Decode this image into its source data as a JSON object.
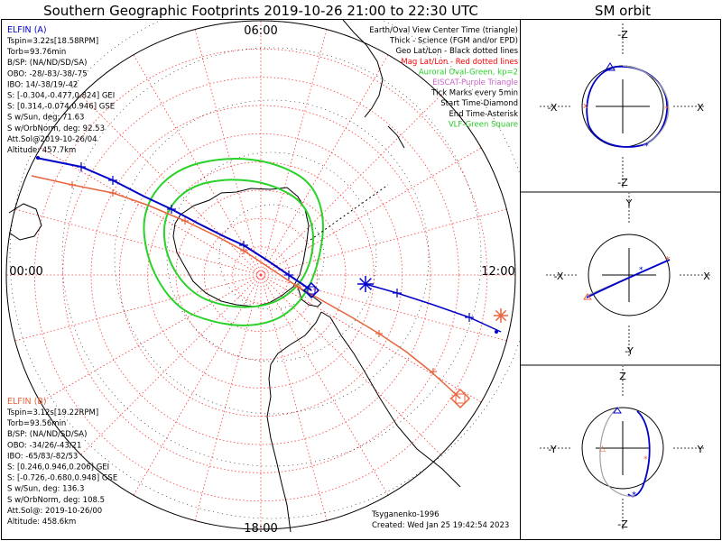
{
  "title": "Southern Geographic Footprints 2019-10-26 21:00 to 22:30 UTC",
  "sm_title": "SM orbit",
  "colors": {
    "elfin_a": "#0000c8",
    "elfin_b": "#e8643c",
    "oval": "#28d228",
    "grid": "#ff3c3c",
    "geo": "#000000",
    "eiscat": "#c864c8",
    "vlf": "#28c828",
    "sm_gray": "#a0a0a0"
  },
  "elfin_a": {
    "name": "ELFIN (A)",
    "lines": [
      "Tspin=3.22s[18.58RPM]",
      "Torb=93.76min",
      "B/SP: (NA/ND/SD/SA)",
      "OBO: -28/-83/-38/-75",
      "IBO: 14/-38/19/-42",
      "S: [-0.304,-0.477,0.824] GEI",
      "S: [0.314,-0.074,0.946] GSE",
      "S w/Sun, deg: 71.63",
      "S w/OrbNorm, deg: 92.53",
      "Att.Sol@2019-10-26/04",
      "Altitude: 457.7km"
    ]
  },
  "elfin_b": {
    "name": "ELFIN (B)",
    "lines": [
      "Tspin=3.12s[19.22RPM]",
      "Torb=93.56min",
      "B/SP: (NA/ND/SD/SA)",
      "OBO: -34/26/-43/21",
      "IBO: -65/83/-82/53",
      "S: [0.246,0.946,0.206] GEI",
      "S: [-0.726,-0.680,0.948] GSE",
      "S w/Sun, deg: 136.3",
      "S w/OrbNorm, deg: 108.5",
      "Att.Sol@: 2019-10-26/00",
      "Altitude: 458.6km"
    ]
  },
  "legend": [
    {
      "text": "Earth/Oval View Center Time (triangle)",
      "color": "#000000"
    },
    {
      "text": "Thick - Science (FGM and/or EPD)",
      "color": "#000000"
    },
    {
      "text": "Geo Lat/Lon - Black dotted lines",
      "color": "#000000"
    },
    {
      "text": "Mag Lat/Lon - Red dotted lines",
      "color": "#ff0000"
    },
    {
      "text": "Auroral Oval-Green, kp=2",
      "color": "#28d228"
    },
    {
      "text": "EISCAT-Purple Triangle",
      "color": "#c864c8"
    },
    {
      "text": "Tick Marks every 5min",
      "color": "#000000"
    },
    {
      "text": "Start Time-Diamond",
      "color": "#000000"
    },
    {
      "text": "End Time-Asterisk",
      "color": "#000000"
    },
    {
      "text": "VLF-Green Square",
      "color": "#28c828"
    }
  ],
  "mlt_labels": {
    "top": "06:00",
    "left": "00:00",
    "right": "12:00",
    "bottom": "18:00"
  },
  "footer": {
    "model": "Tsyganenko-1996",
    "created": "Created: Wed Jan 25 19:42:54 2023"
  },
  "sm_panels": [
    {
      "top": "-Z",
      "bottom": "-Z",
      "left": "-X",
      "right": "X"
    },
    {
      "top": "Y",
      "bottom": "-Y",
      "left": "-X",
      "right": "X"
    },
    {
      "top": "Z",
      "bottom": "-Z",
      "left": "-Y",
      "right": "Y"
    }
  ],
  "chart_data": {
    "type": "polar-map",
    "title": "Southern Geographic Footprints 2019-10-26 21:00 to 22:30 UTC",
    "series": [
      {
        "name": "ELFIN (A)",
        "color": "#0000c8"
      },
      {
        "name": "ELFIN (B)",
        "color": "#e8643c"
      }
    ]
  }
}
